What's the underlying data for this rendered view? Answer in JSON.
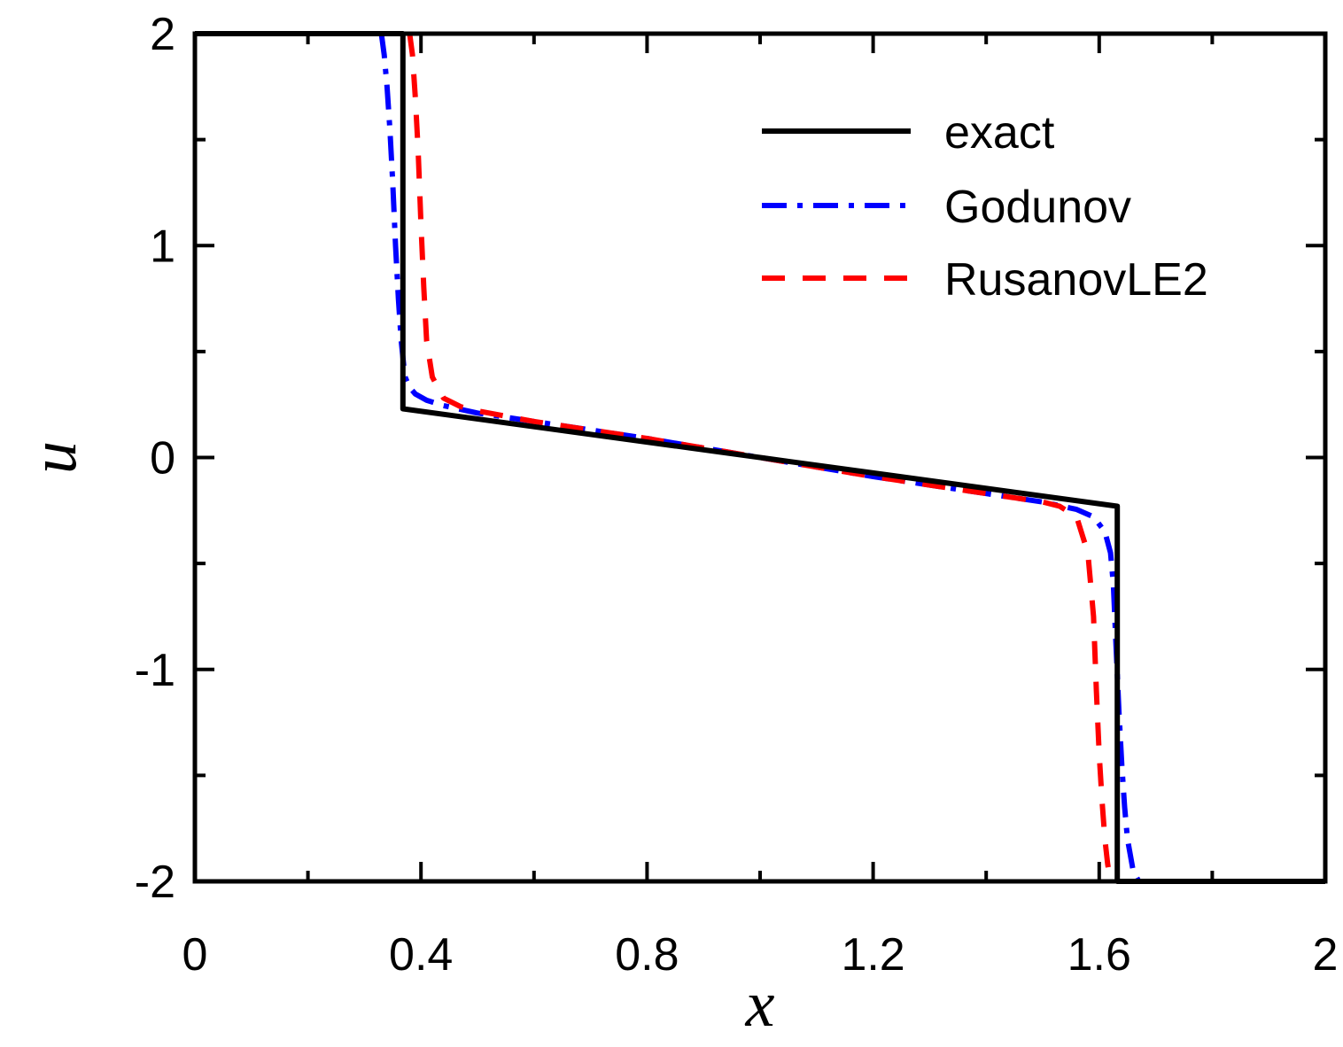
{
  "chart_data": {
    "type": "line",
    "title": "",
    "xlabel": "x",
    "ylabel": "u",
    "xlim": [
      0,
      2
    ],
    "ylim": [
      -2,
      2
    ],
    "x_ticks": [
      {
        "value": 0,
        "label": "0"
      },
      {
        "value": 0.4,
        "label": "0.4"
      },
      {
        "value": 0.8,
        "label": "0.8"
      },
      {
        "value": 1.2,
        "label": "1.2"
      },
      {
        "value": 1.6,
        "label": "1.6"
      },
      {
        "value": 2,
        "label": "2"
      }
    ],
    "x_minor_ticks": [
      0.2,
      0.6,
      1.0,
      1.4,
      1.8
    ],
    "y_ticks": [
      {
        "value": 2,
        "label": "2"
      },
      {
        "value": 1,
        "label": "1"
      },
      {
        "value": 0,
        "label": "0"
      },
      {
        "value": -1,
        "label": "-1"
      },
      {
        "value": -2,
        "label": "-2"
      }
    ],
    "y_minor_ticks": [
      1.5,
      0.5,
      -0.5,
      -1.5
    ],
    "grid": false,
    "legend_position": "top-right",
    "series": [
      {
        "name": "exact",
        "color": "#000000",
        "style": "solid",
        "x": [
          0.0,
          0.368,
          0.368,
          1.0,
          1.632,
          1.632,
          2.0
        ],
        "y": [
          2.0,
          2.0,
          0.23,
          0.0,
          -0.23,
          -2.0,
          -2.0
        ]
      },
      {
        "name": "Godunov",
        "color": "#0000ff",
        "style": "dashdot",
        "x": [
          0.33,
          0.335,
          0.34,
          0.345,
          0.35,
          0.355,
          0.36,
          0.365,
          0.37,
          0.372,
          0.38,
          0.39,
          0.41,
          0.44,
          0.5,
          0.6,
          0.8,
          1.0,
          1.2,
          1.4,
          1.5,
          1.56,
          1.59,
          1.61,
          1.62,
          1.625,
          1.63,
          1.635,
          1.64,
          1.645,
          1.65,
          1.66,
          1.67
        ],
        "y": [
          2.0,
          1.9,
          1.75,
          1.55,
          1.3,
          1.0,
          0.75,
          0.55,
          0.42,
          0.38,
          0.33,
          0.3,
          0.27,
          0.245,
          0.21,
          0.17,
          0.09,
          0.0,
          -0.09,
          -0.17,
          -0.21,
          -0.245,
          -0.28,
          -0.35,
          -0.45,
          -0.6,
          -0.9,
          -1.2,
          -1.45,
          -1.65,
          -1.8,
          -1.95,
          -2.0
        ]
      },
      {
        "name": "RusanovLE2",
        "color": "#ff0000",
        "style": "dashed",
        "x": [
          0.38,
          0.385,
          0.39,
          0.395,
          0.4,
          0.405,
          0.41,
          0.42,
          0.44,
          0.47,
          0.5,
          0.6,
          0.8,
          1.0,
          1.2,
          1.4,
          1.5,
          1.53,
          1.56,
          1.58,
          1.59,
          1.595,
          1.6,
          1.605,
          1.61,
          1.615,
          1.62
        ],
        "y": [
          2.0,
          1.9,
          1.7,
          1.45,
          1.1,
          0.8,
          0.55,
          0.38,
          0.28,
          0.24,
          0.22,
          0.17,
          0.09,
          0.0,
          -0.09,
          -0.17,
          -0.21,
          -0.23,
          -0.28,
          -0.45,
          -0.75,
          -1.1,
          -1.4,
          -1.62,
          -1.8,
          -1.92,
          -2.0
        ]
      }
    ]
  }
}
